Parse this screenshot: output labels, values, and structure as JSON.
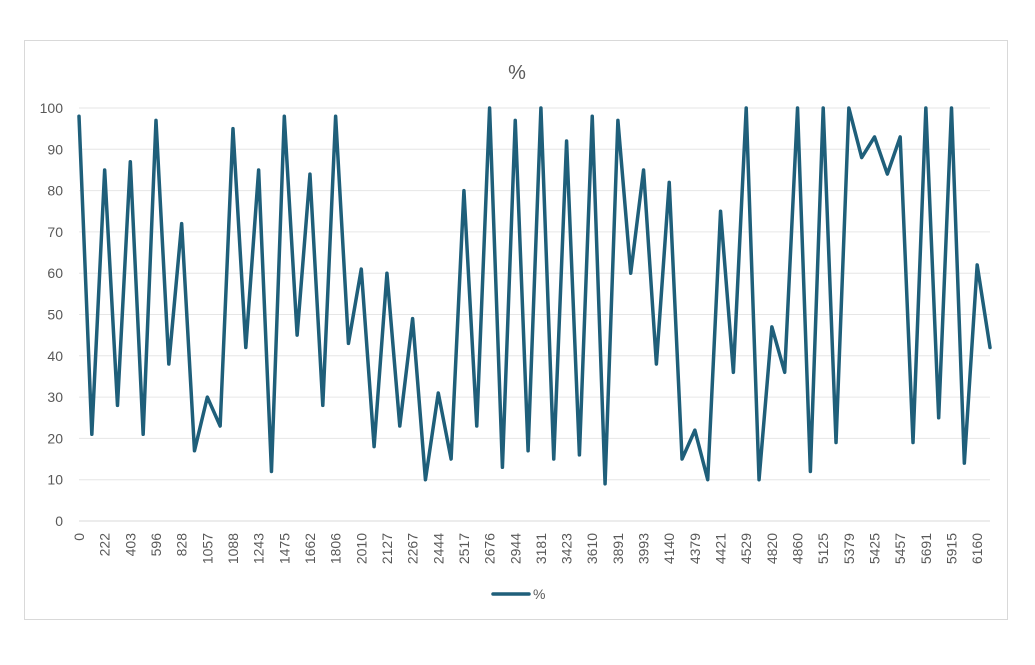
{
  "chart_data": {
    "type": "line",
    "title": "%",
    "xlabel": "",
    "ylabel": "",
    "ylim": [
      0,
      100
    ],
    "yticks": [
      0,
      10,
      20,
      30,
      40,
      50,
      60,
      70,
      80,
      90,
      100
    ],
    "grid": true,
    "legend": "bottom",
    "series_color": "#1f5f7a",
    "x": [
      "0",
      "",
      "222",
      "",
      "403",
      "",
      "596",
      "",
      "828",
      "",
      "1057",
      "",
      "1088",
      "",
      "1243",
      "",
      "1475",
      "",
      "1662",
      "",
      "1806",
      "",
      "2010",
      "",
      "2127",
      "",
      "2267",
      "",
      "2444",
      "",
      "2517",
      "",
      "2676",
      "",
      "2944",
      "",
      "3181",
      "",
      "3423",
      "",
      "3610",
      "",
      "3891",
      "",
      "3993",
      "",
      "4140",
      "",
      "4379",
      "",
      "4421",
      "",
      "4529",
      "",
      "4820",
      "",
      "4860",
      "",
      "5125",
      "",
      "5379",
      "",
      "5425",
      "",
      "5457",
      "",
      "5691",
      "",
      "5915",
      "",
      "6160",
      ""
    ],
    "series": [
      {
        "name": "%",
        "values": [
          98,
          21,
          85,
          28,
          87,
          21,
          97,
          38,
          72,
          17,
          30,
          23,
          95,
          42,
          85,
          12,
          98,
          45,
          84,
          28,
          98,
          43,
          61,
          18,
          60,
          23,
          49,
          10,
          31,
          15,
          80,
          23,
          100,
          13,
          97,
          17,
          100,
          15,
          92,
          16,
          98,
          9,
          97,
          60,
          85,
          38,
          82,
          15,
          22,
          10,
          75,
          36,
          100,
          10,
          47,
          36,
          100,
          12,
          100,
          19,
          100,
          88,
          93,
          84,
          93,
          19,
          100,
          25,
          100,
          14,
          62,
          42
        ]
      }
    ]
  }
}
